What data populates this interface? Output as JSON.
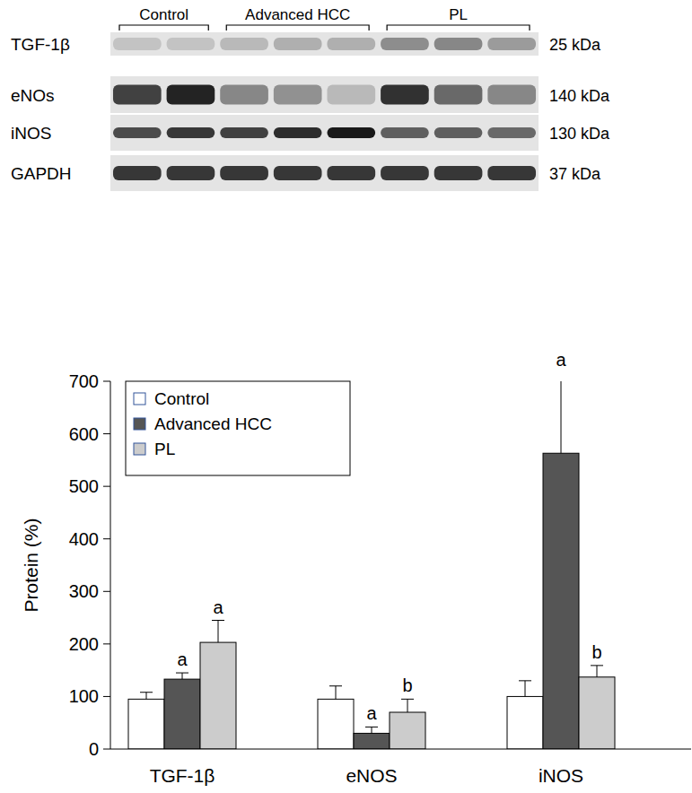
{
  "chart_data": {
    "type": "bar",
    "y_label": "Protein (%)",
    "categories": [
      "TGF-1β",
      "eNOS",
      "iNOS"
    ],
    "series": [
      {
        "name": "Control",
        "color": "#ffffff",
        "values": [
          95,
          95,
          100
        ],
        "errors": [
          13,
          25,
          30
        ],
        "annotations": [
          null,
          null,
          null
        ]
      },
      {
        "name": "Advanced HCC",
        "color": "#555555",
        "values": [
          133,
          30,
          563
        ],
        "errors": [
          12,
          12,
          152
        ],
        "annotations": [
          "a",
          "a",
          "a"
        ]
      },
      {
        "name": "PL",
        "color": "#cccccc",
        "values": [
          203,
          70,
          137
        ],
        "errors": [
          42,
          25,
          22
        ],
        "annotations": [
          "a",
          "b",
          "b"
        ]
      }
    ],
    "ylim": [
      0,
      700
    ],
    "yticks": [
      0,
      100,
      200,
      300,
      400,
      500,
      600,
      700
    ],
    "grid": false,
    "legend": "upper left"
  },
  "blot": {
    "groups": [
      {
        "label": "Control",
        "lanes": 2
      },
      {
        "label": "Advanced HCC",
        "lanes": 3
      },
      {
        "label": "PL",
        "lanes": 3
      }
    ],
    "rows": [
      {
        "label": "TGF-1β",
        "size": "25 kDa"
      },
      {
        "label": "eNOs",
        "size": "140 kDa"
      },
      {
        "label": "iNOS",
        "size": "130 kDa"
      },
      {
        "label": "GAPDH",
        "size": "37 kDa"
      }
    ]
  }
}
